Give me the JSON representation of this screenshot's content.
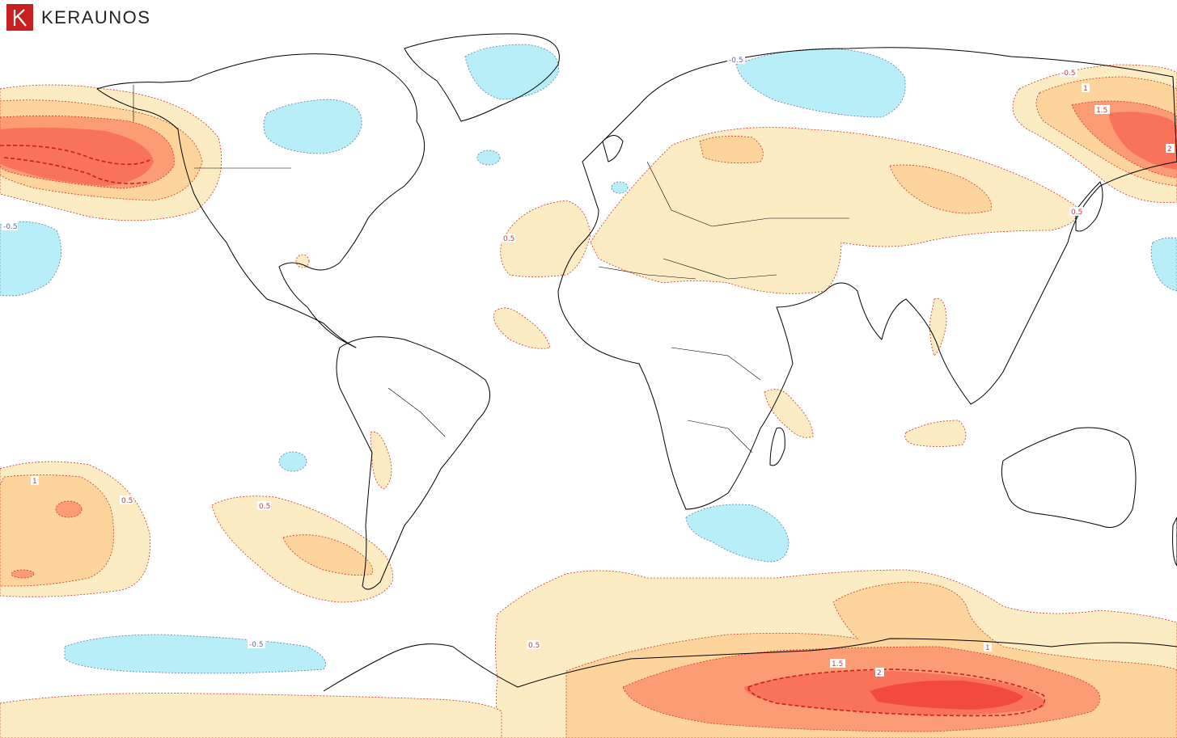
{
  "brand": {
    "name": "KERAUNOS",
    "icon": "keraunos-k-logo",
    "color": "#c8201e"
  },
  "legend_colors": {
    "neg_0_5": "#b8eef8",
    "pos_0_5": "#fcecc4",
    "pos_1": "#fcd49c",
    "pos_1_5": "#fc9c74",
    "pos_2": "#f24a3c",
    "contour_pos": "#d03020",
    "contour_neg": "#5a7ab0"
  },
  "contour_labels": {
    "pacific_nw_neg": "-0.5",
    "atlantic_pos": "0.5",
    "south_pacific_pos": "0.5",
    "south_pacific_one": "1",
    "se_pacific_pos": "0.5",
    "southern_ocean_neg": "-0.5",
    "south_atlantic_pos": "0.5",
    "siberia_neg": "-0.5",
    "east_asia_neg": "-0.5",
    "kamchatka_one": "1",
    "kamchatka_onehalf": "1.5",
    "kamchatka_two": "2",
    "japan_pos": "0.5",
    "antarctic_onehalf": "1.5",
    "antarctic_two": "2",
    "antarctic_one": "1"
  }
}
